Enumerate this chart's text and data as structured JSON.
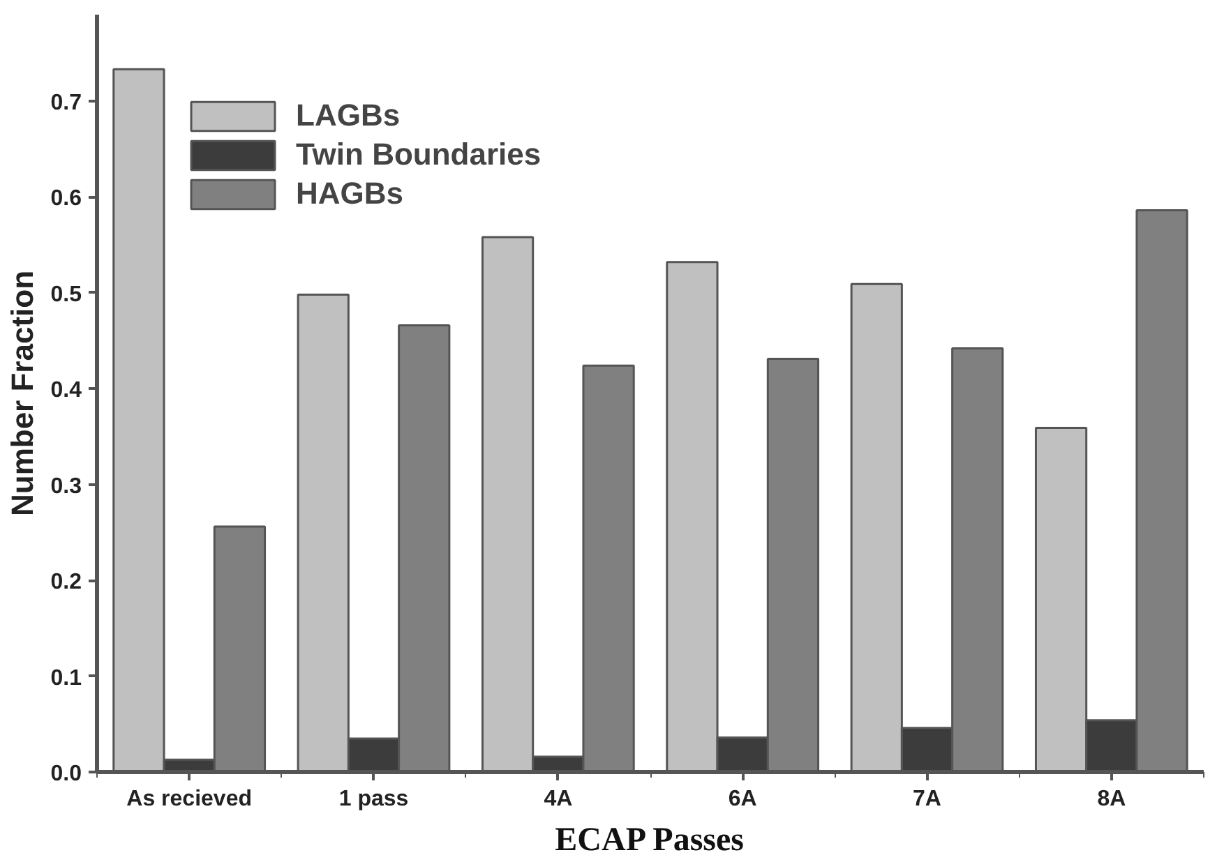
{
  "chart_data": {
    "type": "bar",
    "xlabel": "ECAP Passes",
    "ylabel": "Number Fraction",
    "categories": [
      "As recieved",
      "1 pass",
      "4A",
      "6A",
      "7A",
      "8A"
    ],
    "series": [
      {
        "name": "LAGBs",
        "color": "#c0c0c0",
        "values": [
          0.733,
          0.498,
          0.558,
          0.532,
          0.509,
          0.359
        ]
      },
      {
        "name": "Twin Boundaries",
        "color": "#3c3c3c",
        "values": [
          0.013,
          0.035,
          0.016,
          0.036,
          0.046,
          0.054
        ]
      },
      {
        "name": "HAGBs",
        "color": "#808080",
        "values": [
          0.256,
          0.466,
          0.424,
          0.431,
          0.442,
          0.586
        ]
      }
    ],
    "ylim": [
      0,
      0.79
    ],
    "yticks": [
      {
        "value": 0,
        "label": "0.0"
      },
      0.1,
      0.2,
      0.3,
      0.4,
      0.5,
      0.6,
      0.7
    ],
    "grid": false,
    "legend": "top left"
  }
}
